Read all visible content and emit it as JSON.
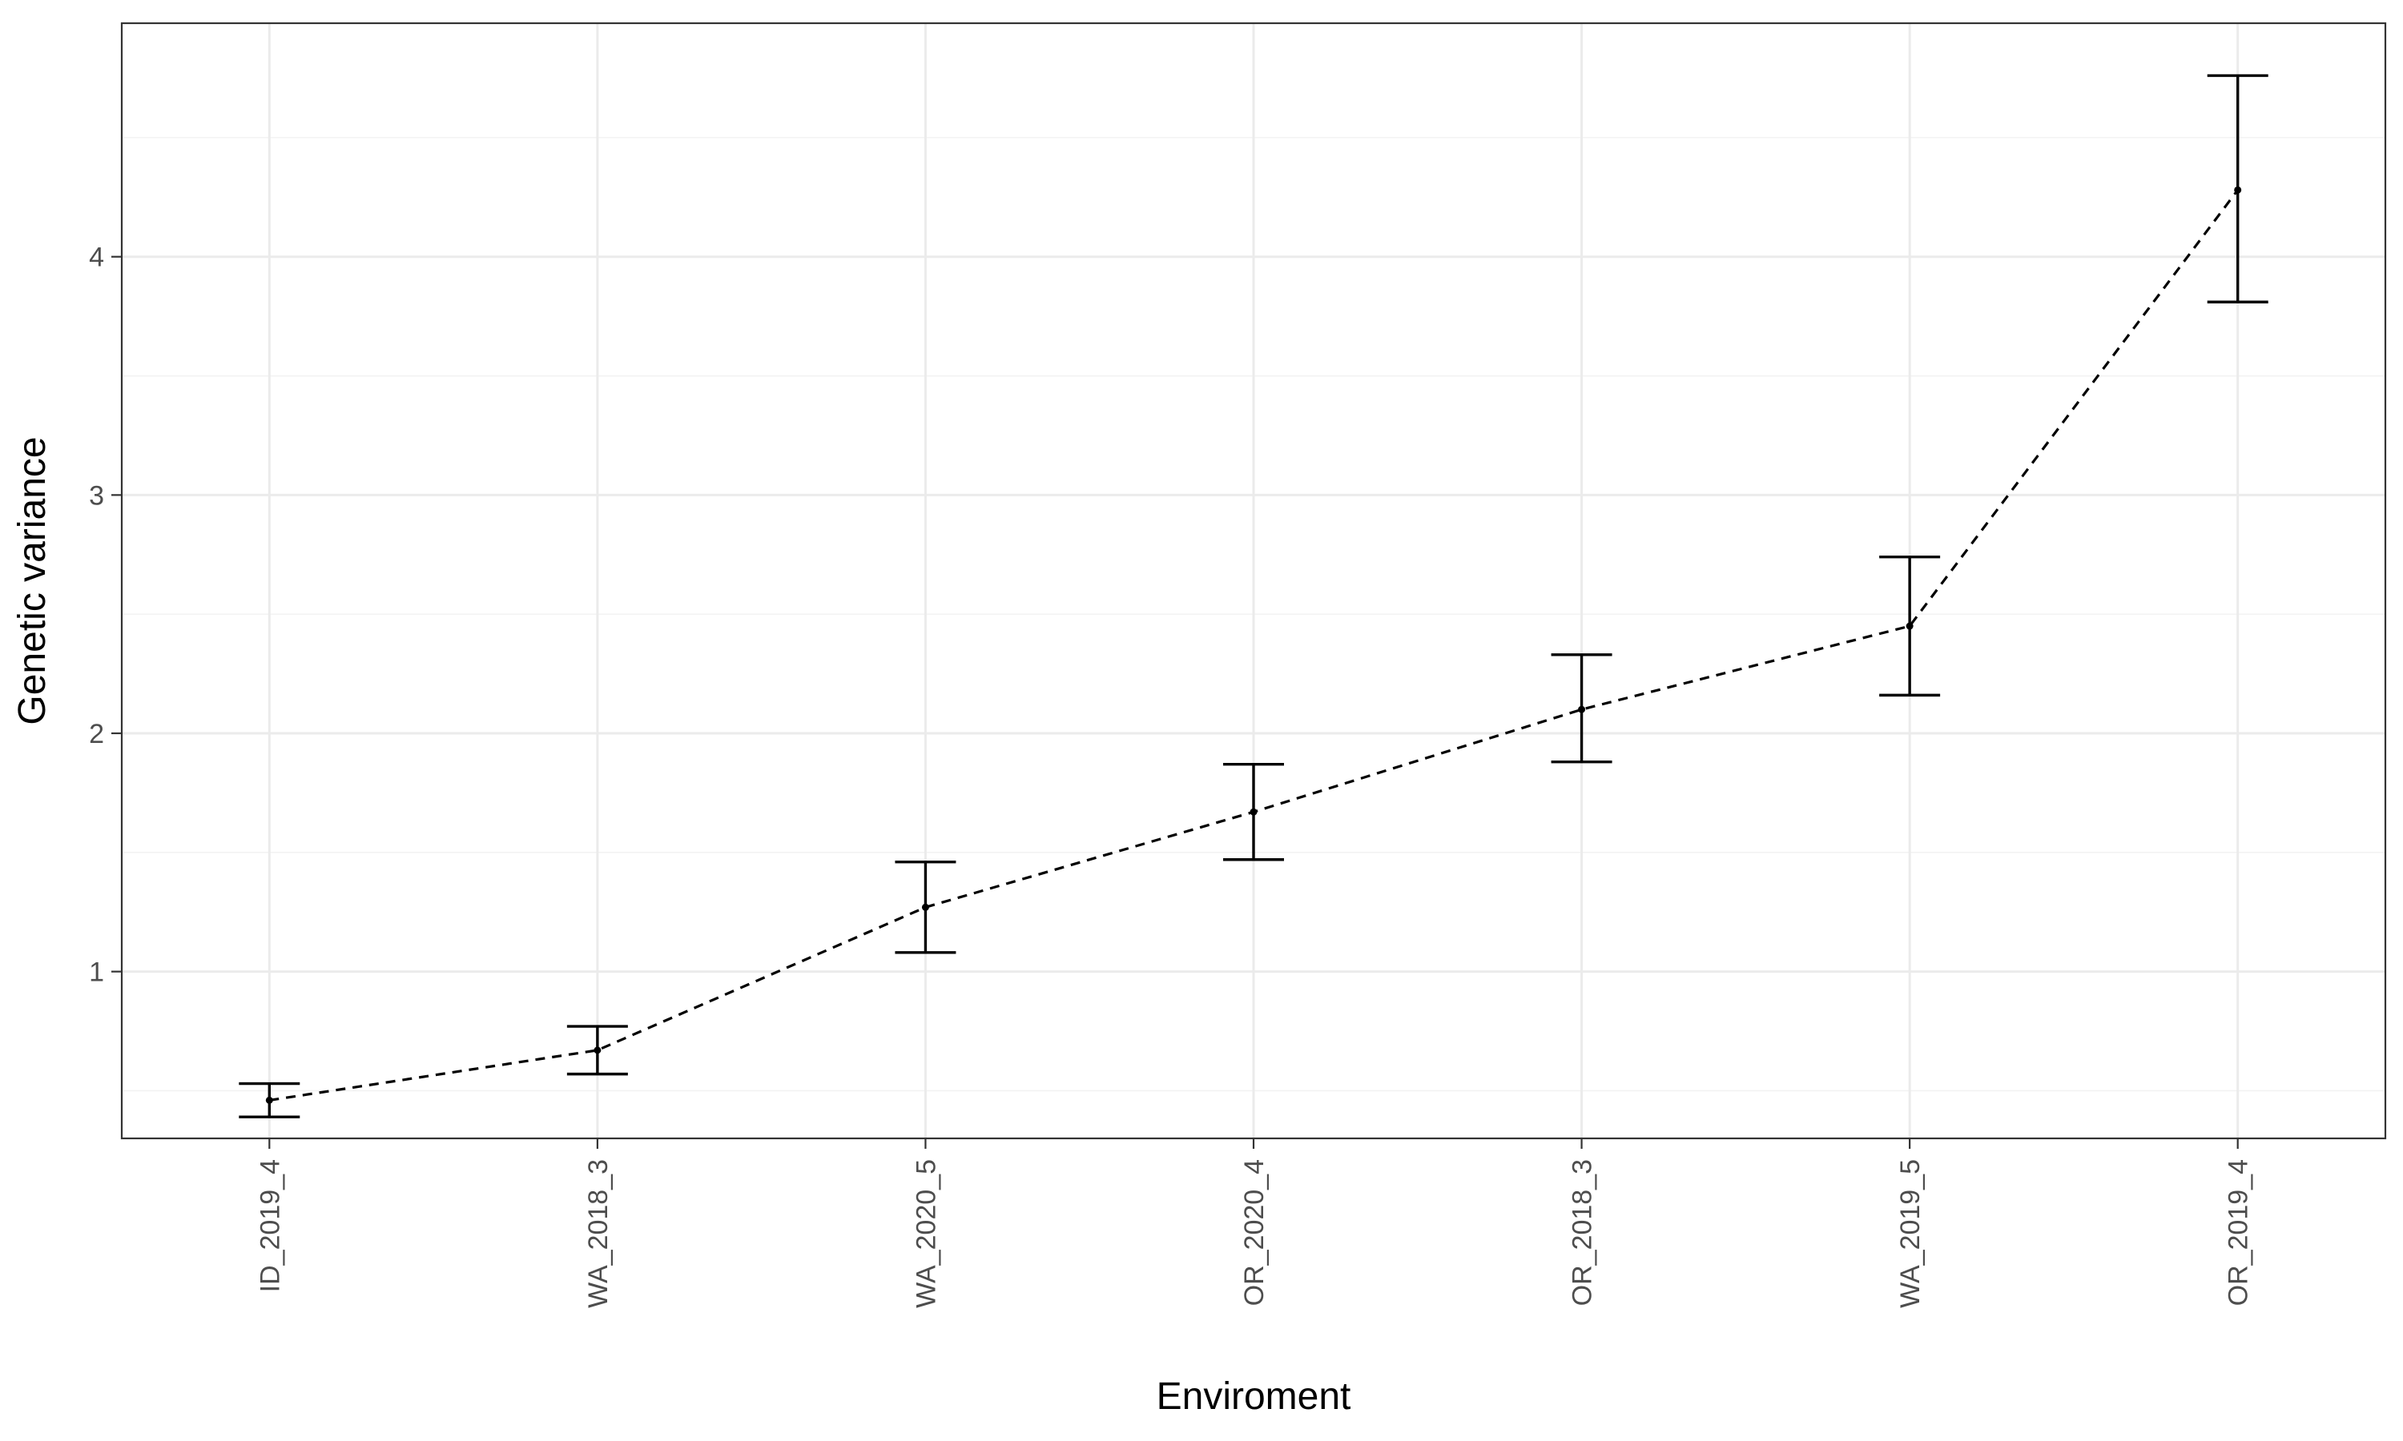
{
  "chart_data": {
    "type": "line",
    "title": "",
    "xlabel": "Enviroment",
    "ylabel": "Genetic variance",
    "categories": [
      "ID_2019_4",
      "WA_2018_3",
      "WA_2020_5",
      "OR_2020_4",
      "OR_2018_3",
      "WA_2019_5",
      "OR_2019_4"
    ],
    "series": [
      {
        "values": [
          0.46,
          0.67,
          1.27,
          1.67,
          2.1,
          2.45,
          4.28
        ],
        "lower": [
          0.39,
          0.57,
          1.08,
          1.47,
          1.88,
          2.16,
          3.81
        ],
        "upper": [
          0.53,
          0.77,
          1.46,
          1.87,
          2.33,
          2.74,
          4.76
        ],
        "line_style": "dashed",
        "color": "#000000"
      }
    ],
    "ylim": [
      0.3,
      4.98
    ],
    "yticks": [
      1,
      2,
      3,
      4
    ],
    "grid": true,
    "legend": "none"
  }
}
